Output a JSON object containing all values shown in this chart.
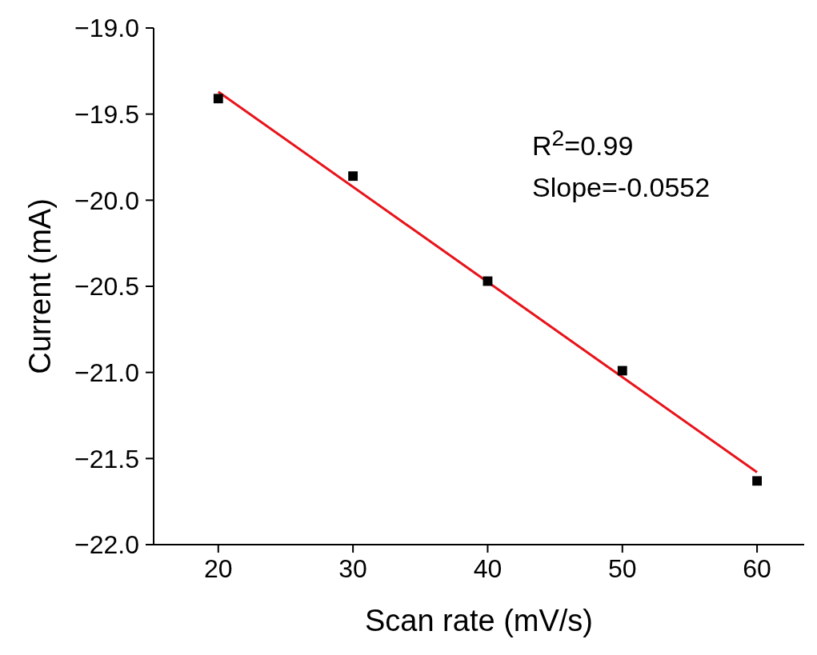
{
  "chart_data": {
    "type": "scatter",
    "xlabel": "Scan rate (mV/s)",
    "ylabel": "Current (mA)",
    "xlim": [
      15.2,
      63.5
    ],
    "xticks": [
      20,
      30,
      40,
      50,
      60
    ],
    "ylim": [
      -22,
      -19
    ],
    "yticks": [
      {
        "value": -22,
        "label": "−22.0"
      },
      {
        "value": -21.5,
        "label": "−21.5"
      },
      {
        "value": -21,
        "label": "−21.0"
      },
      {
        "value": -20.5,
        "label": "−20.5"
      },
      {
        "value": -20,
        "label": "−20.0"
      },
      {
        "value": -19.5,
        "label": "−19.5"
      },
      {
        "value": -19,
        "label": "−19.0"
      }
    ],
    "grid": false,
    "marker": "square",
    "series": [
      {
        "color": "#000000",
        "x": [
          20,
          30,
          40,
          50,
          60
        ],
        "values": [
          -19.41,
          -19.86,
          -20.47,
          -20.99,
          -21.63
        ]
      },
      {
        "type": "line",
        "color": "#e8141b",
        "x": [
          20,
          60
        ],
        "values": [
          -19.37,
          -21.58
        ],
        "marker": "none",
        "line_style": "solid"
      }
    ],
    "annotations": [
      "R$^{2}$=0.99",
      "Slope=-0.0552"
    ]
  }
}
